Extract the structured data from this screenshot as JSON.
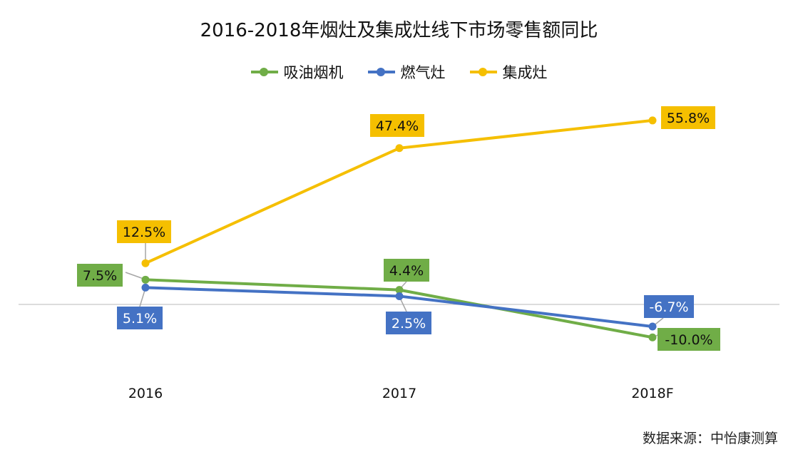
{
  "chart_data": {
    "type": "line",
    "title": "2016-2018年烟灶及集成灶线下市场零售额同比",
    "categories": [
      "2016",
      "2017",
      "2018F"
    ],
    "series": [
      {
        "name": "吸油烟机",
        "color": "#70ad47",
        "values": [
          7.5,
          4.4,
          -10.0
        ],
        "labels": [
          "7.5%",
          "4.4%",
          "-10.0%"
        ]
      },
      {
        "name": "燃气灶",
        "color": "#4472c4",
        "values": [
          5.1,
          2.5,
          -6.7
        ],
        "labels": [
          "5.1%",
          "2.5%",
          "-6.7%"
        ]
      },
      {
        "name": "集成灶",
        "color": "#f5bf00",
        "values": [
          12.5,
          47.4,
          55.8
        ],
        "labels": [
          "12.5%",
          "47.4%",
          "55.8%"
        ]
      }
    ],
    "legend_position": "top-center",
    "grid": false,
    "source": "数据来源：中怡康测算"
  }
}
